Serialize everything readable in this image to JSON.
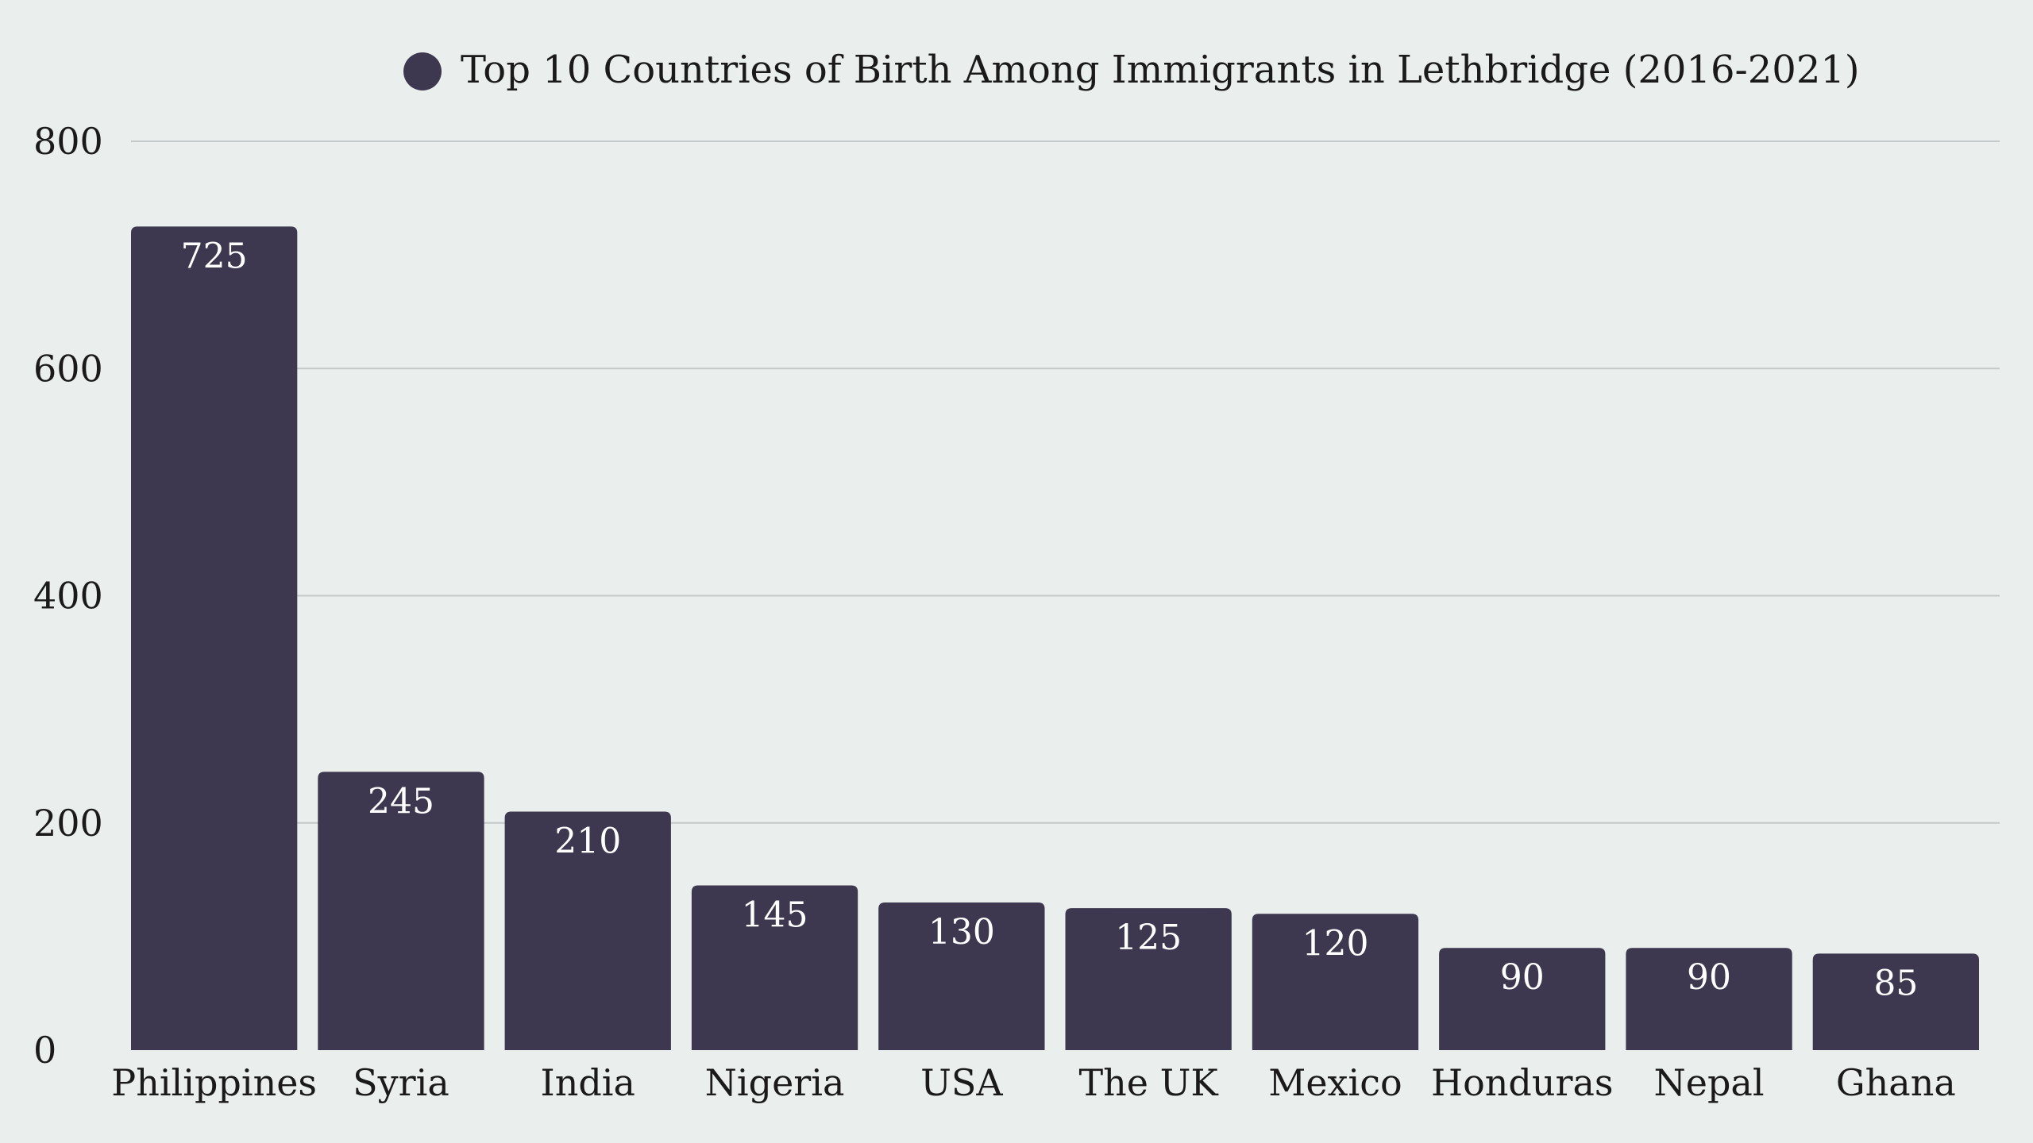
{
  "chart_data": {
    "type": "bar",
    "title": "",
    "xlabel": "",
    "ylabel": "",
    "legend": {
      "position": "top-center",
      "entries": [
        "Top 10 Countries of Birth Among Immigrants in Lethbridge (2016-2021)"
      ]
    },
    "categories": [
      "Philippines",
      "Syria",
      "India",
      "Nigeria",
      "USA",
      "The UK",
      "Mexico",
      "Honduras",
      "Nepal",
      "Ghana"
    ],
    "series": [
      {
        "name": "Top 10 Countries of Birth Among Immigrants in Lethbridge (2016-2021)",
        "values": [
          725,
          245,
          210,
          145,
          130,
          125,
          120,
          90,
          90,
          85
        ]
      }
    ],
    "ylim": [
      0,
      800
    ],
    "yticks": [
      0,
      200,
      400,
      600,
      800
    ],
    "grid": true,
    "data_labels": true,
    "colors": {
      "bar": "#3d384f",
      "background": "#eaeeed",
      "grid": "#c4c9c9"
    }
  }
}
